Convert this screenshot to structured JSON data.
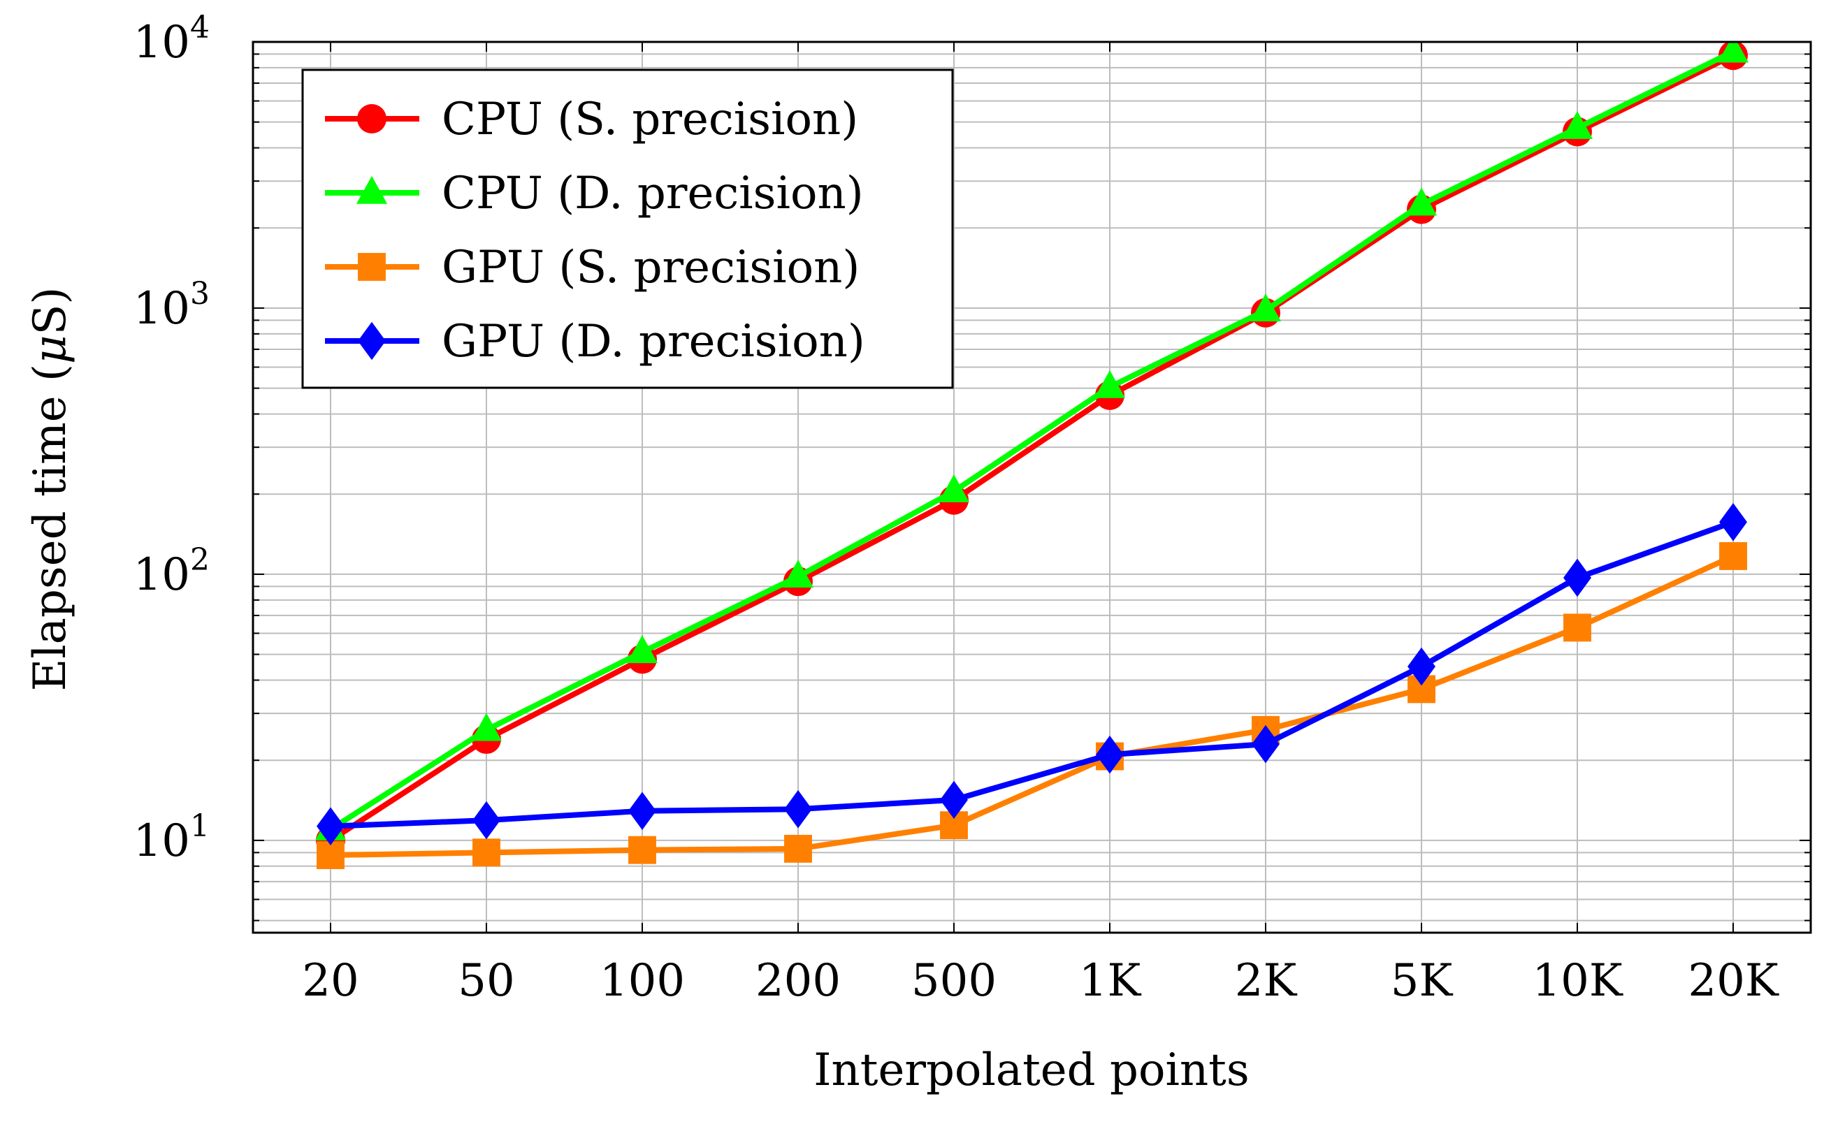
{
  "chart_data": {
    "type": "line",
    "title": "",
    "xlabel": "Interpolated points",
    "ylabel": "Elapsed time (μS)",
    "ylabel_parts": {
      "prefix": "Elapsed time (",
      "symbol": "μ",
      "suffix": "S)"
    },
    "categories": [
      "20",
      "50",
      "100",
      "200",
      "500",
      "1K",
      "2K",
      "5K",
      "10K",
      "20K"
    ],
    "yscale": "log",
    "ylim": [
      4.5,
      10000
    ],
    "yticks": [
      {
        "base": "10",
        "exp": "1",
        "value": 10
      },
      {
        "base": "10",
        "exp": "2",
        "value": 100
      },
      {
        "base": "10",
        "exp": "3",
        "value": 1000
      },
      {
        "base": "10",
        "exp": "4",
        "value": 10000
      }
    ],
    "grid": true,
    "legend_position": "top-left",
    "series": [
      {
        "name": "CPU (S. precision)",
        "color": "#ff0000",
        "marker": "circle",
        "values": [
          10,
          24,
          48,
          94,
          190,
          470,
          960,
          2350,
          4600,
          8900
        ]
      },
      {
        "name": "CPU (D. precision)",
        "color": "#00ff00",
        "marker": "triangle",
        "values": [
          11,
          26,
          51,
          98,
          205,
          505,
          980,
          2450,
          4750,
          9200
        ]
      },
      {
        "name": "GPU (S. precision)",
        "color": "#ff8000",
        "marker": "square",
        "values": [
          8.8,
          9.0,
          9.2,
          9.3,
          11.4,
          20.7,
          26,
          37,
          63,
          117
        ]
      },
      {
        "name": "GPU (D. precision)",
        "color": "#0000ff",
        "marker": "diamond",
        "values": [
          11.3,
          11.9,
          12.9,
          13.1,
          14.2,
          21,
          23,
          45,
          97,
          157
        ]
      }
    ]
  }
}
